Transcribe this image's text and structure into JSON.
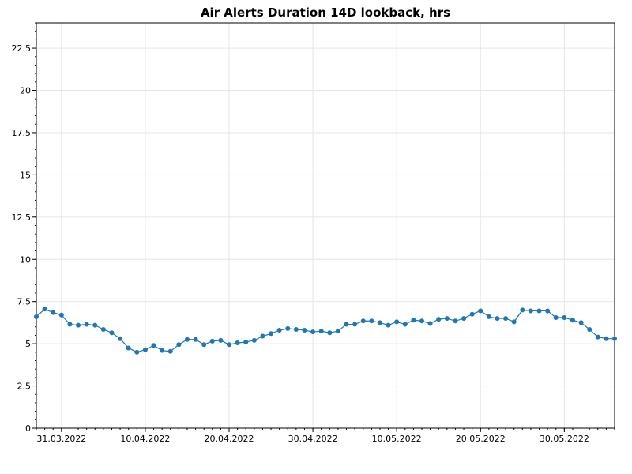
{
  "chart_data": {
    "type": "line",
    "title": "Air Alerts Duration 14D lookback, hrs",
    "xlabel": "",
    "ylabel": "",
    "ylim": [
      0,
      24
    ],
    "xlim": [
      "2022-03-28",
      "2022-06-05"
    ],
    "grid": true,
    "y_ticks": [
      0,
      2.5,
      5,
      7.5,
      10,
      12.5,
      15,
      17.5,
      20,
      22.5
    ],
    "y_tick_labels": [
      "0",
      "2.5",
      "5",
      "7.5",
      "10",
      "12.5",
      "15",
      "17.5",
      "20",
      "22.5"
    ],
    "x_ticks": [
      "2022-03-31",
      "2022-04-10",
      "2022-04-20",
      "2022-04-30",
      "2022-05-10",
      "2022-05-20",
      "2022-05-30"
    ],
    "x_tick_labels": [
      "31.03.2022",
      "10.04.2022",
      "20.04.2022",
      "30.04.2022",
      "10.05.2022",
      "20.05.2022",
      "30.05.2022"
    ],
    "line_color": "#1f77b4",
    "marker": "circle",
    "series": [
      {
        "x": [
          "2022-03-28",
          "2022-03-29",
          "2022-03-30",
          "2022-03-31",
          "2022-04-01",
          "2022-04-02",
          "2022-04-03",
          "2022-04-04",
          "2022-04-05",
          "2022-04-06",
          "2022-04-07",
          "2022-04-08",
          "2022-04-09",
          "2022-04-10",
          "2022-04-11",
          "2022-04-12",
          "2022-04-13",
          "2022-04-14",
          "2022-04-15",
          "2022-04-16",
          "2022-04-17",
          "2022-04-18",
          "2022-04-19",
          "2022-04-20",
          "2022-04-21",
          "2022-04-22",
          "2022-04-23",
          "2022-04-24",
          "2022-04-25",
          "2022-04-26",
          "2022-04-27",
          "2022-04-28",
          "2022-04-29",
          "2022-04-30",
          "2022-05-01",
          "2022-05-02",
          "2022-05-03",
          "2022-05-04",
          "2022-05-05",
          "2022-05-06",
          "2022-05-07",
          "2022-05-08",
          "2022-05-09",
          "2022-05-10",
          "2022-05-11",
          "2022-05-12",
          "2022-05-13",
          "2022-05-14",
          "2022-05-15",
          "2022-05-16",
          "2022-05-17",
          "2022-05-18",
          "2022-05-19",
          "2022-05-20",
          "2022-05-21",
          "2022-05-22",
          "2022-05-23",
          "2022-05-24",
          "2022-05-25",
          "2022-05-26",
          "2022-05-27",
          "2022-05-28",
          "2022-05-29",
          "2022-05-30",
          "2022-05-31",
          "2022-06-01",
          "2022-06-02",
          "2022-06-03",
          "2022-06-04",
          "2022-06-05"
        ],
        "y": [
          6.6,
          7.05,
          6.85,
          6.7,
          6.15,
          6.1,
          6.15,
          6.1,
          5.85,
          5.65,
          5.3,
          4.75,
          4.5,
          4.65,
          4.9,
          4.6,
          4.55,
          4.95,
          5.25,
          5.25,
          4.95,
          5.15,
          5.2,
          4.95,
          5.05,
          5.1,
          5.2,
          5.45,
          5.6,
          5.8,
          5.9,
          5.85,
          5.8,
          5.7,
          5.75,
          5.65,
          5.75,
          6.15,
          6.15,
          6.35,
          6.35,
          6.25,
          6.1,
          6.3,
          6.15,
          6.4,
          6.35,
          6.2,
          6.45,
          6.5,
          6.35,
          6.5,
          6.75,
          6.95,
          6.6,
          6.5,
          6.5,
          6.3,
          7.0,
          6.95,
          6.95,
          6.95,
          6.55,
          6.55,
          6.4,
          6.25,
          5.85,
          5.4,
          5.3,
          5.3
        ]
      }
    ]
  }
}
